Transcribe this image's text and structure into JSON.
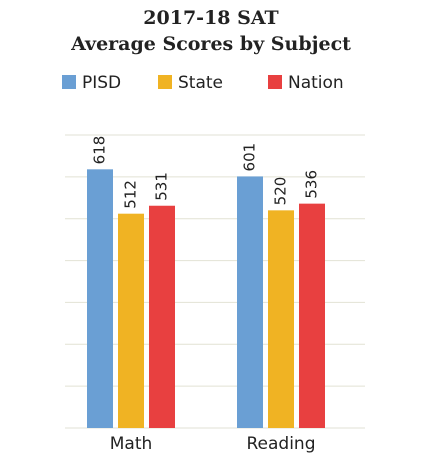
{
  "chart_data": {
    "type": "bar",
    "title": "2017-18 SAT",
    "subtitle": "Average Scores by Subject",
    "categories": [
      "Math",
      "Reading"
    ],
    "series": [
      {
        "name": "PISD",
        "color": "#6a9fd4",
        "values": [
          618,
          601
        ]
      },
      {
        "name": "State",
        "color": "#f0b323",
        "values": [
          512,
          520
        ]
      },
      {
        "name": "Nation",
        "color": "#e84040",
        "values": [
          531,
          536
        ]
      }
    ],
    "ylim": [
      0,
      700
    ],
    "yticks": [
      0,
      100,
      200,
      300,
      400,
      500,
      600,
      700
    ],
    "grid": true,
    "legend": "top"
  }
}
